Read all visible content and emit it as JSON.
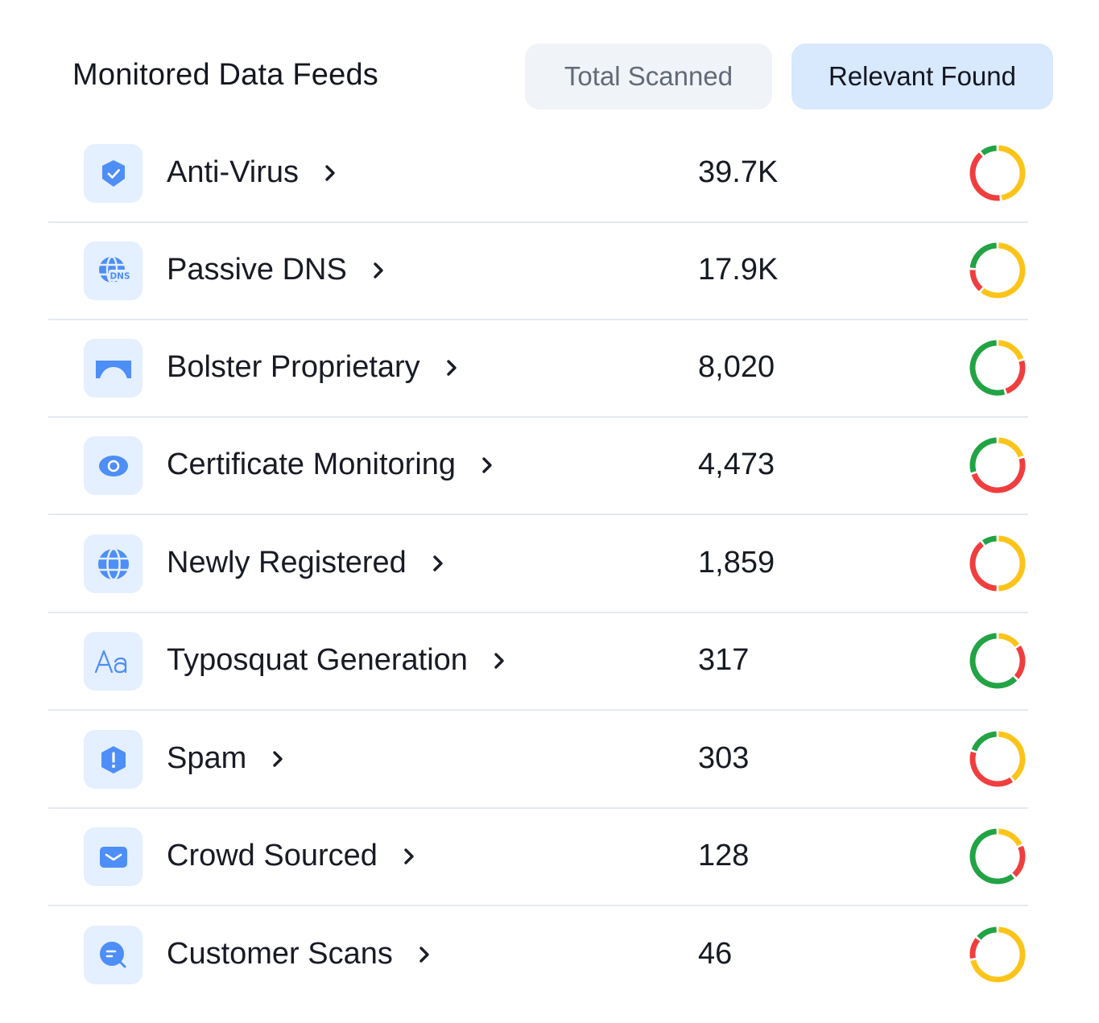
{
  "header": {
    "title": "Monitored Data Feeds",
    "tabs": [
      {
        "label": "Total Scanned",
        "active": false
      },
      {
        "label": "Relevant Found",
        "active": true
      }
    ]
  },
  "colors": {
    "green": "#22a344",
    "yellow": "#fcc419",
    "red": "#f03e3e",
    "icon_blue": "#4d8ef7",
    "icon_bg": "#e4efff",
    "active_tab_bg": "#d8e8fd",
    "inactive_tab_bg": "#f0f3f7"
  },
  "feeds": [
    {
      "name": "Anti-Virus",
      "icon": "shield-check-icon",
      "value": "39.7K",
      "breakdown": {
        "green": 0.11,
        "yellow": 0.48,
        "red": 0.41
      }
    },
    {
      "name": "Passive DNS",
      "icon": "dns-globe-icon",
      "value": "17.9K",
      "breakdown": {
        "green": 0.24,
        "yellow": 0.61,
        "red": 0.15
      }
    },
    {
      "name": "Bolster Proprietary",
      "icon": "bolster-logo-icon",
      "value": "8,020",
      "breakdown": {
        "green": 0.55,
        "yellow": 0.2,
        "red": 0.25
      }
    },
    {
      "name": "Certificate Monitoring",
      "icon": "eye-icon",
      "value": "4,473",
      "breakdown": {
        "green": 0.3,
        "yellow": 0.2,
        "red": 0.5
      }
    },
    {
      "name": "Newly Registered",
      "icon": "globe-icon",
      "value": "1,859",
      "breakdown": {
        "green": 0.1,
        "yellow": 0.5,
        "red": 0.4
      }
    },
    {
      "name": "Typosquat Generation",
      "icon": "typography-icon",
      "value": "317",
      "breakdown": {
        "green": 0.63,
        "yellow": 0.15,
        "red": 0.22
      }
    },
    {
      "name": "Spam",
      "icon": "alert-shield-icon",
      "value": "303",
      "breakdown": {
        "green": 0.2,
        "yellow": 0.4,
        "red": 0.4
      }
    },
    {
      "name": "Crowd Sourced",
      "icon": "mail-icon",
      "value": "128",
      "breakdown": {
        "green": 0.61,
        "yellow": 0.18,
        "red": 0.21
      }
    },
    {
      "name": "Customer Scans",
      "icon": "chat-search-icon",
      "value": "46",
      "breakdown": {
        "green": 0.14,
        "yellow": 0.72,
        "red": 0.14
      }
    }
  ]
}
